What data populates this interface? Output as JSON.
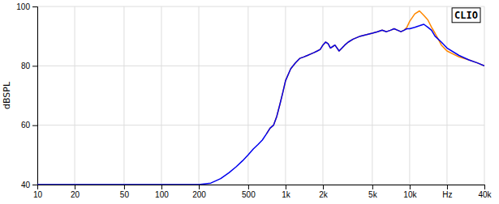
{
  "chart_data": {
    "type": "line",
    "title": "CLIO",
    "y_label": "dBSPL",
    "log": "x",
    "grid": true,
    "xlim": [
      10,
      40000
    ],
    "ylim": [
      40,
      100
    ],
    "xticks": [
      10,
      20,
      50,
      100,
      200,
      500,
      {
        "value": 1000,
        "label": "1k"
      },
      {
        "value": 2000,
        "label": "2k"
      },
      {
        "value": 5000,
        "label": "5k"
      },
      {
        "value": 10000,
        "label": "10k"
      },
      {
        "value": 20000,
        "label": "Hz"
      },
      {
        "value": 40000,
        "label": "40k"
      }
    ],
    "yticks": [
      40,
      60,
      80,
      100
    ],
    "series": [
      {
        "color": "#0000ee",
        "x": [
          10,
          50,
          100,
          150,
          200,
          250,
          300,
          350,
          400,
          450,
          500,
          550,
          600,
          650,
          700,
          750,
          800,
          850,
          900,
          950,
          1000,
          1100,
          1200,
          1300,
          1400,
          1500,
          1600,
          1700,
          1800,
          1900,
          2000,
          2100,
          2200,
          2300,
          2400,
          2500,
          2700,
          3000,
          3200,
          3500,
          4000,
          4500,
          5000,
          5500,
          6000,
          6500,
          7000,
          7500,
          8000,
          8500,
          9000,
          9500,
          10000,
          11000,
          12000,
          13000,
          14000,
          15000,
          16000,
          18000,
          20000,
          25000,
          30000,
          35000,
          40000
        ],
        "values": [
          40,
          40,
          40,
          40,
          40,
          40.5,
          42,
          44,
          46,
          48,
          50,
          52,
          53.5,
          55,
          57,
          59,
          60,
          63,
          67,
          71,
          75,
          79,
          81,
          82.5,
          83,
          83.5,
          84,
          84.5,
          85,
          85.5,
          87,
          88,
          87.5,
          86,
          86.5,
          87,
          85,
          87,
          88,
          89,
          90,
          90.5,
          91,
          91.5,
          92,
          91.5,
          92,
          92.5,
          92,
          91.5,
          92,
          92.5,
          92.5,
          93,
          93.5,
          94,
          93,
          92,
          90,
          88,
          86,
          83.5,
          82,
          81,
          80
        ]
      },
      {
        "color": "#ff8800",
        "x": [
          700,
          750,
          800,
          850,
          900,
          950,
          1000,
          1100,
          1200,
          1300,
          1400,
          1500,
          1600,
          1700,
          1800,
          1900,
          2000,
          2100,
          2200,
          2300,
          2400,
          2500,
          2700,
          3000,
          3200,
          3500,
          4000,
          4500,
          5000,
          5500,
          6000,
          6500,
          7000,
          7500,
          8000,
          8500,
          9000,
          9500,
          10000,
          11000,
          12000,
          13000,
          14000,
          15000,
          16000,
          17000,
          18000,
          20000,
          25000,
          30000,
          35000,
          40000
        ],
        "values": [
          57,
          59,
          60,
          63,
          67,
          71,
          75,
          79,
          81,
          82.5,
          83,
          83.5,
          84,
          84.5,
          85,
          85.5,
          87,
          88,
          87.5,
          86,
          86.5,
          87,
          85,
          87,
          88,
          89,
          90,
          90.5,
          91,
          91.5,
          92,
          91.5,
          92,
          92.5,
          92,
          91.5,
          92,
          93,
          95,
          97.5,
          98.5,
          97,
          95.5,
          93,
          91,
          89,
          87,
          85,
          83,
          82,
          81,
          80
        ]
      }
    ]
  }
}
